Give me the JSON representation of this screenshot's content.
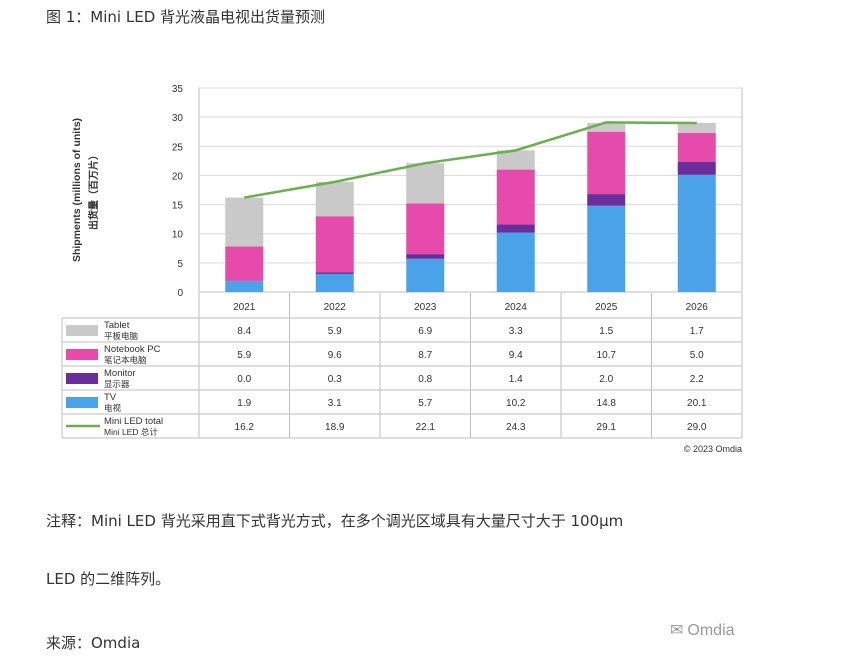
{
  "figure_title": "图 1：Mini LED 背光液晶电视出货量预测",
  "chart_data": {
    "type": "bar",
    "stacked": true,
    "categories": [
      "2021",
      "2022",
      "2023",
      "2024",
      "2025",
      "2026"
    ],
    "ylim": [
      0,
      35
    ],
    "y_ticks": [
      "0",
      "5",
      "10",
      "15",
      "20",
      "25",
      "30",
      "35"
    ],
    "ylabel": "Shipments (millions of units)",
    "ylabel_cn": "出货量（百万片）",
    "grid": true,
    "series": [
      {
        "name": "TV",
        "name_cn": "电视",
        "color": "#4aa3e8",
        "values": [
          1.9,
          3.1,
          5.7,
          10.2,
          14.8,
          20.1
        ],
        "labels": [
          "1.9",
          "3.1",
          "5.7",
          "10.2",
          "14.8",
          "20.1"
        ]
      },
      {
        "name": "Monitor",
        "name_cn": "显示器",
        "color": "#6a2d9c",
        "values": [
          0.0,
          0.3,
          0.8,
          1.4,
          2.0,
          2.2
        ],
        "labels": [
          "0.0",
          "0.3",
          "0.8",
          "1.4",
          "2.0",
          "2.2"
        ]
      },
      {
        "name": "Notebook PC",
        "name_cn": "笔记本电脑",
        "color": "#e64aab",
        "values": [
          5.9,
          9.6,
          8.7,
          9.4,
          10.7,
          5.0
        ],
        "labels": [
          "5.9",
          "9.6",
          "8.7",
          "9.4",
          "10.7",
          "5.0"
        ]
      },
      {
        "name": "Tablet",
        "name_cn": "平板电脑",
        "color": "#c9c9c9",
        "values": [
          8.4,
          5.9,
          6.9,
          3.3,
          1.5,
          1.7
        ],
        "labels": [
          "8.4",
          "5.9",
          "6.9",
          "3.3",
          "1.5",
          "1.7"
        ]
      }
    ],
    "line": {
      "name": "Mini LED total",
      "name_cn": "Mini LED 总计",
      "color": "#6ab04c",
      "values": [
        16.2,
        18.9,
        22.1,
        24.3,
        29.1,
        29.0
      ],
      "labels": [
        "16.2",
        "18.9",
        "22.1",
        "24.3",
        "29.1",
        "29.0"
      ]
    },
    "table_row_order": [
      "Tablet",
      "Notebook PC",
      "Monitor",
      "TV",
      "Mini LED total"
    ],
    "copyright": "© 2023 Omdia"
  },
  "note_line1": "注释：Mini LED 背光采用直下式背光方式，在多个调光区域具有大量尺寸大于 100μm",
  "note_line2": "LED 的二维阵列。",
  "source": "来源：Omdia",
  "watermark": "Omdia"
}
